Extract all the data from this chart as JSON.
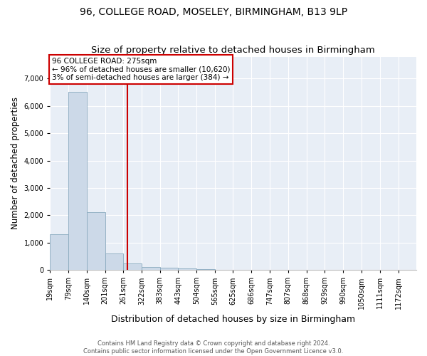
{
  "title": "96, COLLEGE ROAD, MOSELEY, BIRMINGHAM, B13 9LP",
  "subtitle": "Size of property relative to detached houses in Birmingham",
  "xlabel": "Distribution of detached houses by size in Birmingham",
  "ylabel": "Number of detached properties",
  "property_size": 275,
  "property_label": "96 COLLEGE ROAD: 275sqm",
  "annotation_line1": "← 96% of detached houses are smaller (10,620)",
  "annotation_line2": "3% of semi-detached houses are larger (384) →",
  "bar_color": "#ccd9e8",
  "bar_edge_color": "#8aaabf",
  "vline_color": "#cc0000",
  "annotation_box_color": "#cc0000",
  "background_color": "#e8eef6",
  "footer_line1": "Contains HM Land Registry data © Crown copyright and database right 2024.",
  "footer_line2": "Contains public sector information licensed under the Open Government Licence v3.0.",
  "bins": [
    19,
    79,
    140,
    201,
    261,
    322,
    383,
    443,
    504,
    565,
    625,
    686,
    747,
    807,
    868,
    929,
    990,
    1050,
    1111,
    1172,
    1232
  ],
  "counts": [
    1300,
    6500,
    2100,
    600,
    250,
    110,
    70,
    45,
    30,
    10,
    0,
    0,
    0,
    0,
    0,
    0,
    0,
    0,
    0,
    0
  ],
  "ylim": [
    0,
    7800
  ],
  "yticks": [
    0,
    1000,
    2000,
    3000,
    4000,
    5000,
    6000,
    7000
  ],
  "title_fontsize": 10,
  "subtitle_fontsize": 9.5,
  "ylabel_fontsize": 8.5,
  "xlabel_fontsize": 9,
  "tick_fontsize": 7,
  "annotation_fontsize": 7.5,
  "footer_fontsize": 6
}
